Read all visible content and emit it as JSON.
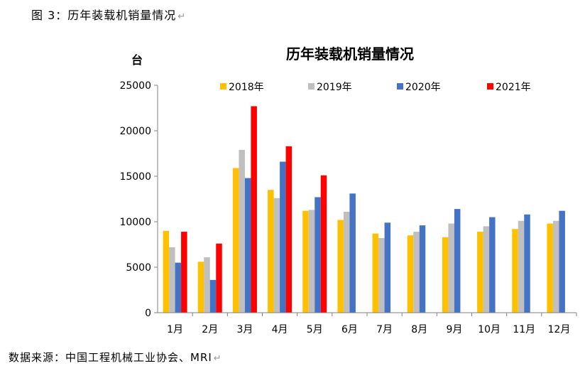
{
  "caption": {
    "prefix": "图 3：",
    "title": "历年装载机销量情况",
    "return_mark": "↵"
  },
  "source": {
    "text": "数据来源：中国工程机械工业协会、MRI",
    "return_mark": "↵"
  },
  "colors": {
    "2018年": "#FFC000",
    "2019年": "#BFBFBF",
    "2020年": "#4472C4",
    "2021年": "#FF0000"
  },
  "chart_data": {
    "type": "bar",
    "title": "历年装载机销量情况",
    "ylabel": "台",
    "xlabel": "",
    "ylim": [
      0,
      25000
    ],
    "yticks": [
      0,
      5000,
      10000,
      15000,
      20000,
      25000
    ],
    "grid": false,
    "legend_position": "top",
    "categories": [
      "1月",
      "2月",
      "3月",
      "4月",
      "5月",
      "6月",
      "7月",
      "8月",
      "9月",
      "10月",
      "11月",
      "12月"
    ],
    "series": [
      {
        "name": "2018年",
        "values": [
          9000,
          5600,
          15900,
          13500,
          11200,
          10200,
          8700,
          8500,
          8300,
          8900,
          9200,
          9800
        ]
      },
      {
        "name": "2019年",
        "values": [
          7200,
          6100,
          17900,
          12600,
          11300,
          11100,
          8200,
          8900,
          9800,
          9500,
          10100,
          10100
        ]
      },
      {
        "name": "2020年",
        "values": [
          5500,
          3600,
          14800,
          16600,
          12700,
          13100,
          9900,
          9600,
          11400,
          10500,
          10800,
          11200
        ]
      },
      {
        "name": "2021年",
        "values": [
          8900,
          7600,
          22700,
          18300,
          15100,
          null,
          null,
          null,
          null,
          null,
          null,
          null
        ]
      }
    ]
  }
}
